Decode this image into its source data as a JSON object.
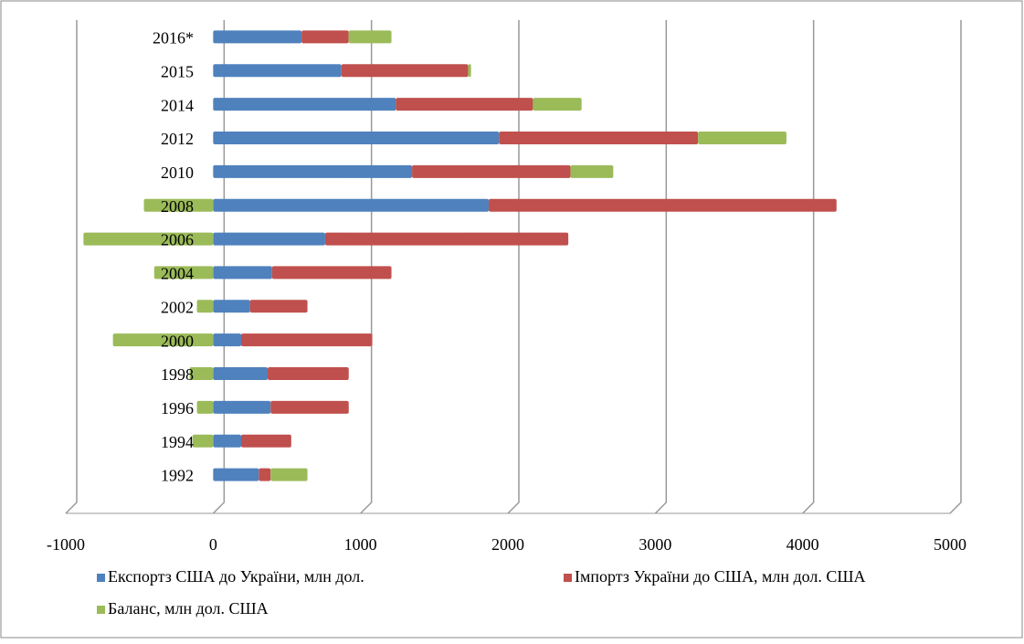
{
  "chart_data": {
    "type": "bar",
    "orientation": "horizontal",
    "stacked": true,
    "categories": [
      "1992",
      "1994",
      "1996",
      "1998",
      "2000",
      "2002",
      "2004",
      "2006",
      "2008",
      "2010",
      "2012",
      "2014",
      "2015",
      "2016*"
    ],
    "series": [
      {
        "name": "Експортз США до України, млн дол.",
        "color": "#4f81bd",
        "values": [
          310,
          190,
          390,
          370,
          190,
          250,
          400,
          760,
          1870,
          1350,
          1940,
          1240,
          870,
          600
        ]
      },
      {
        "name": "Імпортз України до США, млн дол. США",
        "color": "#c0504d",
        "values": [
          80,
          340,
          530,
          550,
          890,
          390,
          810,
          1650,
          2360,
          1075,
          1350,
          930,
          860,
          320
        ]
      },
      {
        "name": "Баланс, млн дол. США",
        "color": "#9bbb59",
        "values": [
          250,
          -140,
          -110,
          -160,
          -680,
          -110,
          -400,
          -880,
          -470,
          290,
          600,
          330,
          20,
          290
        ]
      }
    ],
    "xlim": [
      -1000,
      5000
    ],
    "xticks": [
      -1000,
      0,
      1000,
      2000,
      3000,
      4000,
      5000
    ],
    "grid": true,
    "legend": "bottom"
  }
}
